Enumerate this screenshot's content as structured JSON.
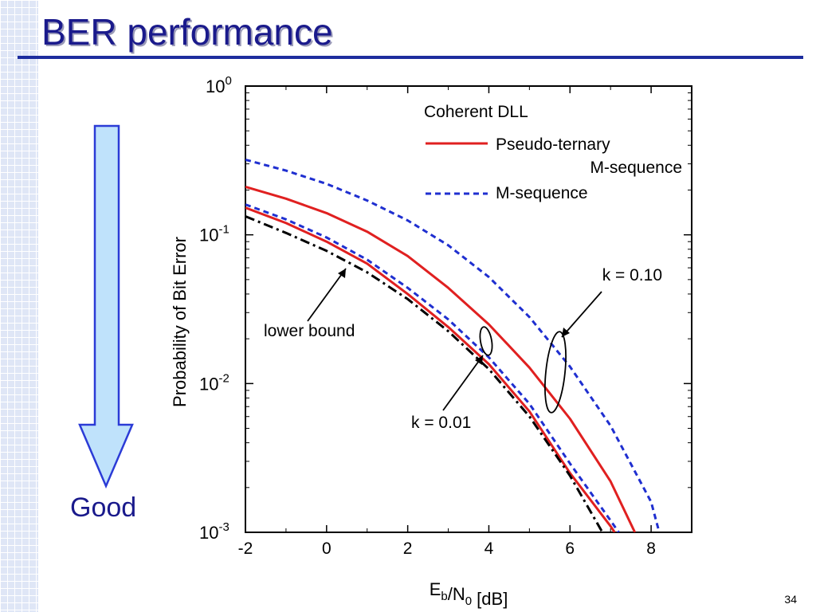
{
  "slide": {
    "title": "BER performance",
    "good_label": "Good",
    "page_number": "34",
    "accent_color": "#1d2d9e",
    "arrow_fill": "#bfe2fb",
    "arrow_stroke": "#2b3bd6"
  },
  "chart_data": {
    "type": "line",
    "xlabel": "E_b/N_0 [dB]",
    "ylabel": "Probability of Bit Error",
    "x_ticks": [
      -2,
      0,
      2,
      4,
      6,
      8
    ],
    "y_ticks": [
      "10^0",
      "10^-1",
      "10^-2",
      "10^-3"
    ],
    "xlim": [
      -2,
      9
    ],
    "ylim": [
      0.001,
      1
    ],
    "y_scale": "log",
    "legend": {
      "title": "Coherent DLL",
      "placement": "top-right",
      "entries": [
        {
          "label_line1": "Pseudo-ternary",
          "label_line2": "M-sequence",
          "color": "#e02020",
          "style": "solid"
        },
        {
          "label_line1": "M-sequence",
          "label_line2": "",
          "color": "#1f2fd0",
          "style": "dashed"
        }
      ]
    },
    "annotations": {
      "k_high": "k = 0.10",
      "k_low": "k = 0.01",
      "lower_bound": "lower bound"
    },
    "series": [
      {
        "name": "Pseudo-ternary M-sequence, k = 0.10",
        "color": "#e02020",
        "style": "solid",
        "x": [
          -2,
          -1,
          0,
          1,
          2,
          3,
          4,
          5,
          6,
          7,
          7.6
        ],
        "y": [
          0.21,
          0.175,
          0.14,
          0.105,
          0.072,
          0.044,
          0.025,
          0.0128,
          0.0058,
          0.0022,
          0.001
        ]
      },
      {
        "name": "M-sequence, k = 0.10",
        "color": "#1f2fd0",
        "style": "dashed",
        "x": [
          -2,
          -1,
          0,
          1,
          2,
          3,
          4,
          5,
          6,
          7,
          8,
          8.2
        ],
        "y": [
          0.32,
          0.27,
          0.22,
          0.17,
          0.125,
          0.085,
          0.052,
          0.028,
          0.013,
          0.0052,
          0.0016,
          0.001
        ]
      },
      {
        "name": "Pseudo-ternary M-sequence, k = 0.01",
        "color": "#e02020",
        "style": "solid",
        "x": [
          -2,
          -1,
          0,
          1,
          2,
          3,
          4,
          5,
          6,
          7,
          7.1
        ],
        "y": [
          0.152,
          0.12,
          0.09,
          0.064,
          0.04,
          0.024,
          0.0135,
          0.0065,
          0.0025,
          0.0011,
          0.001
        ]
      },
      {
        "name": "M-sequence, k = 0.01",
        "color": "#1f2fd0",
        "style": "dashed",
        "x": [
          -2,
          -1,
          0,
          1,
          2,
          3,
          4,
          5,
          6,
          7,
          7.2
        ],
        "y": [
          0.16,
          0.127,
          0.096,
          0.068,
          0.044,
          0.027,
          0.015,
          0.0073,
          0.0029,
          0.0012,
          0.001
        ]
      },
      {
        "name": "lower bound",
        "color": "#000000",
        "style": "dashdot",
        "x": [
          -2,
          -1,
          0,
          1,
          2,
          3,
          4,
          5,
          6,
          6.8
        ],
        "y": [
          0.133,
          0.103,
          0.078,
          0.056,
          0.037,
          0.0225,
          0.0125,
          0.006,
          0.0024,
          0.001
        ]
      }
    ]
  }
}
